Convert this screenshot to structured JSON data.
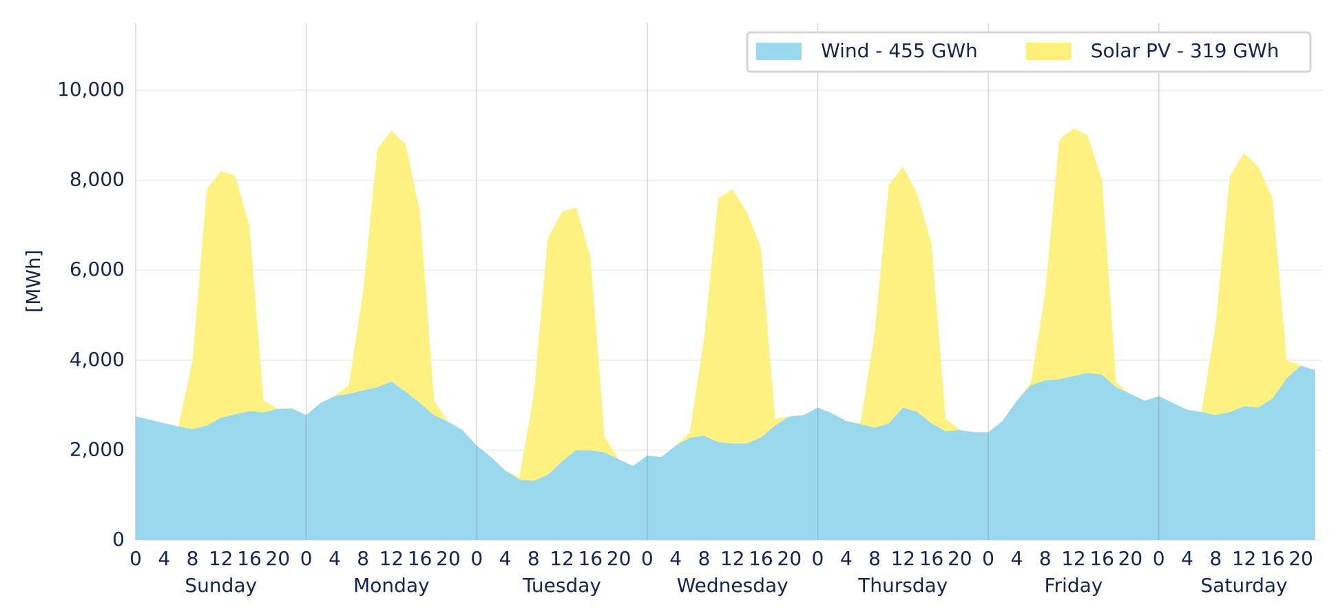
{
  "chart_data": {
    "type": "stacked_area",
    "ylabel": "[MWh]",
    "x": [
      0,
      2,
      4,
      6,
      8,
      10,
      12,
      14,
      16,
      18,
      20,
      22,
      24,
      26,
      28,
      30,
      32,
      34,
      36,
      38,
      40,
      42,
      44,
      46,
      48,
      50,
      52,
      54,
      56,
      58,
      60,
      62,
      64,
      66,
      68,
      70,
      72,
      74,
      76,
      78,
      80,
      82,
      84,
      86,
      88,
      90,
      92,
      94,
      96,
      98,
      100,
      102,
      104,
      106,
      108,
      110,
      112,
      114,
      116,
      118,
      120,
      122,
      124,
      126,
      128,
      130,
      132,
      134,
      136,
      138,
      140,
      142,
      144,
      146,
      148,
      150,
      152,
      154,
      156,
      158,
      160,
      162,
      164,
      166
    ],
    "series": [
      {
        "name": "Wind - 455 GWh",
        "color": "#9ad8ee",
        "values": [
          2750,
          2680,
          2600,
          2530,
          2470,
          2550,
          2720,
          2800,
          2870,
          2840,
          2920,
          2930,
          2780,
          3050,
          3200,
          3250,
          3330,
          3400,
          3530,
          3300,
          3050,
          2780,
          2630,
          2450,
          2100,
          1850,
          1550,
          1350,
          1320,
          1450,
          1750,
          2000,
          2000,
          1950,
          1800,
          1650,
          1880,
          1850,
          2100,
          2280,
          2320,
          2180,
          2150,
          2150,
          2280,
          2550,
          2750,
          2780,
          2950,
          2820,
          2650,
          2580,
          2500,
          2600,
          2950,
          2850,
          2600,
          2420,
          2450,
          2400,
          2400,
          2650,
          3100,
          3450,
          3550,
          3580,
          3650,
          3720,
          3680,
          3400,
          3250,
          3100,
          3200,
          3050,
          2900,
          2850,
          2780,
          2850,
          2980,
          2950,
          3150,
          3600,
          3880,
          3780
        ]
      },
      {
        "name": "Solar PV - 319 GWh",
        "color": "#fdf07a",
        "values": [
          0,
          0,
          0,
          0,
          1500,
          5250,
          5480,
          5300,
          4130,
          260,
          0,
          0,
          0,
          0,
          0,
          200,
          2170,
          5300,
          5570,
          5500,
          4250,
          320,
          0,
          0,
          0,
          0,
          0,
          50,
          1880,
          5250,
          5550,
          5400,
          4300,
          350,
          0,
          0,
          0,
          0,
          0,
          120,
          2180,
          5420,
          5650,
          5150,
          4220,
          150,
          0,
          0,
          0,
          0,
          0,
          20,
          2100,
          5300,
          5350,
          4850,
          4000,
          280,
          0,
          0,
          0,
          0,
          0,
          50,
          1950,
          5320,
          5500,
          5280,
          4320,
          100,
          0,
          0,
          0,
          0,
          0,
          0,
          2020,
          5250,
          5620,
          5350,
          4450,
          400,
          0,
          0
        ]
      }
    ],
    "xlim": [
      0,
      167
    ],
    "ylim": [
      0,
      11500
    ],
    "yticks": [
      0,
      {
        "value": 2000,
        "label": "2,000"
      },
      {
        "value": 4000,
        "label": "4,000"
      },
      {
        "value": 6000,
        "label": "6,000"
      },
      {
        "value": 8000,
        "label": "8,000"
      },
      {
        "value": 10000,
        "label": "10,000"
      }
    ],
    "xticks": [
      0,
      4,
      8,
      12,
      16,
      20,
      {
        "value": 24,
        "label": "0"
      },
      {
        "value": 28,
        "label": "4"
      },
      {
        "value": 32,
        "label": "8"
      },
      {
        "value": 36,
        "label": "12"
      },
      {
        "value": 40,
        "label": "16"
      },
      {
        "value": 44,
        "label": "20"
      },
      {
        "value": 48,
        "label": "0"
      },
      {
        "value": 52,
        "label": "4"
      },
      {
        "value": 56,
        "label": "8"
      },
      {
        "value": 60,
        "label": "12"
      },
      {
        "value": 64,
        "label": "16"
      },
      {
        "value": 68,
        "label": "20"
      },
      {
        "value": 72,
        "label": "0"
      },
      {
        "value": 76,
        "label": "4"
      },
      {
        "value": 80,
        "label": "8"
      },
      {
        "value": 84,
        "label": "12"
      },
      {
        "value": 88,
        "label": "16"
      },
      {
        "value": 92,
        "label": "20"
      },
      {
        "value": 96,
        "label": "0"
      },
      {
        "value": 100,
        "label": "4"
      },
      {
        "value": 104,
        "label": "8"
      },
      {
        "value": 108,
        "label": "12"
      },
      {
        "value": 112,
        "label": "16"
      },
      {
        "value": 116,
        "label": "20"
      },
      {
        "value": 120,
        "label": "0"
      },
      {
        "value": 124,
        "label": "4"
      },
      {
        "value": 128,
        "label": "8"
      },
      {
        "value": 132,
        "label": "12"
      },
      {
        "value": 136,
        "label": "16"
      },
      {
        "value": 140,
        "label": "20"
      },
      {
        "value": 144,
        "label": "0"
      },
      {
        "value": 148,
        "label": "4"
      },
      {
        "value": 152,
        "label": "8"
      },
      {
        "value": 156,
        "label": "12"
      },
      {
        "value": 160,
        "label": "16"
      },
      {
        "value": 164,
        "label": "20"
      }
    ],
    "groups": [
      "Sunday",
      "Monday",
      "Tuesday",
      "Wednesday",
      "Thursday",
      "Friday",
      "Saturday"
    ],
    "grid": true,
    "legend": "upper-right"
  }
}
